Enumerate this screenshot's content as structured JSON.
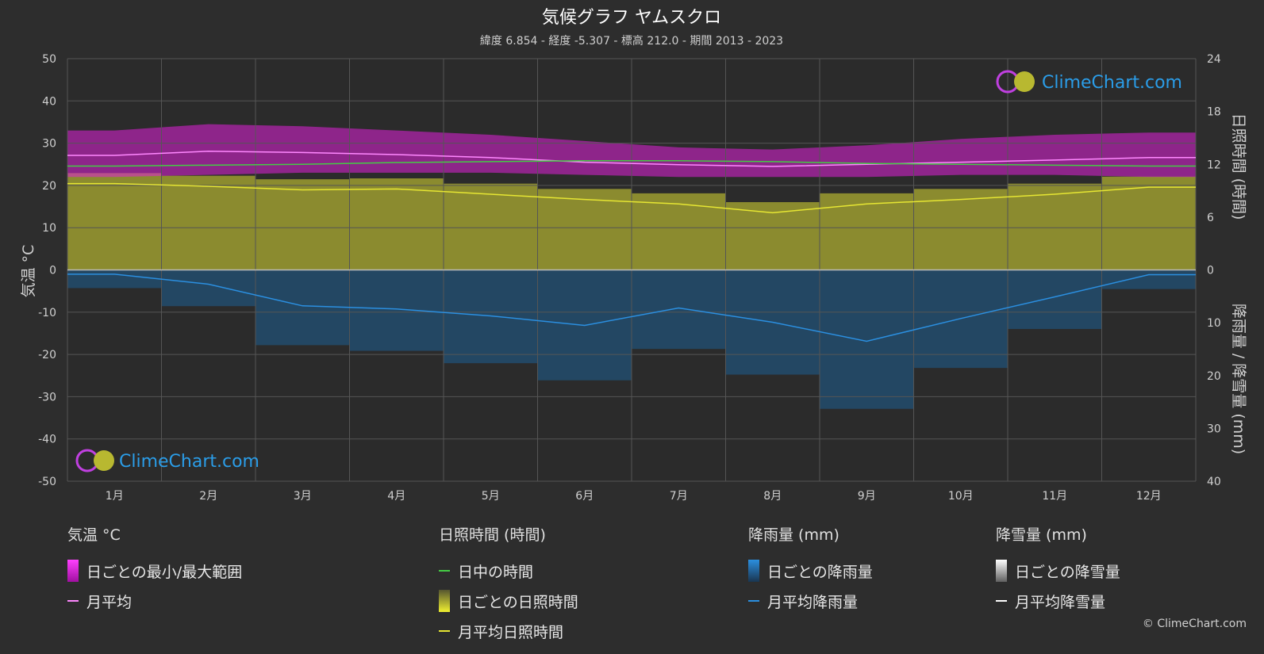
{
  "title": "気候グラフ ヤムスクロ",
  "subtitle": "緯度 6.854 - 経度 -5.307 - 標高 212.0 - 期間 2013 - 2023",
  "logo_text": "ClimeChart.com",
  "copyright": "© ClimeChart.com",
  "chart_data": {
    "type": "line",
    "months": [
      "1月",
      "2月",
      "3月",
      "4月",
      "5月",
      "6月",
      "7月",
      "8月",
      "9月",
      "10月",
      "11月",
      "12月"
    ],
    "axes": {
      "left": {
        "label": "気温 °C",
        "min": -50,
        "max": 50,
        "ticks": [
          50,
          40,
          30,
          20,
          10,
          0,
          -10,
          -20,
          -30,
          -40,
          -50
        ]
      },
      "right_top": {
        "label": "日照時間 (時間)",
        "min": 0,
        "max": 24,
        "ticks": [
          24,
          18,
          12,
          6,
          0
        ]
      },
      "right_bottom": {
        "label": "降雨量 / 降雪量 (mm)",
        "min": 0,
        "max": 40,
        "ticks": [
          0,
          10,
          20,
          30,
          40
        ]
      }
    },
    "series": [
      {
        "name": "月平均",
        "unit": "°C",
        "color": "#ff88ff",
        "values": [
          27.1,
          28.1,
          27.8,
          27.3,
          26.6,
          25.5,
          24.9,
          24.5,
          25.0,
          25.5,
          26.0,
          26.6
        ]
      },
      {
        "name": "日中の時間",
        "unit": "h",
        "color": "#44cc44",
        "values": [
          11.8,
          11.9,
          12.0,
          12.2,
          12.3,
          12.4,
          12.4,
          12.3,
          12.1,
          12.0,
          11.9,
          11.8
        ]
      },
      {
        "name": "月平均日照時間",
        "unit": "h",
        "color": "#e6e633",
        "values": [
          9.8,
          9.5,
          9.1,
          9.2,
          8.6,
          8.0,
          7.5,
          6.5,
          7.5,
          8.0,
          8.6,
          9.4
        ]
      },
      {
        "name": "月平均降雨量",
        "unit": "mm",
        "color": "#2b8fe0",
        "values": [
          0.8,
          2.7,
          6.8,
          7.4,
          8.7,
          10.5,
          7.2,
          9.9,
          13.5,
          9.2,
          5.1,
          0.9
        ]
      },
      {
        "name": "月平均降雪量",
        "unit": "mm",
        "color": "#ffffff",
        "values": [
          0,
          0,
          0,
          0,
          0,
          0,
          0,
          0,
          0,
          0,
          0,
          0
        ]
      }
    ],
    "ranges": {
      "daily_min_temp": [
        22.0,
        22.5,
        23.0,
        23.0,
        23.0,
        22.5,
        22.0,
        22.0,
        22.0,
        22.5,
        22.5,
        22.0
      ],
      "daily_max_temp": [
        33.0,
        34.5,
        34.0,
        33.0,
        32.0,
        30.5,
        29.0,
        28.5,
        29.5,
        31.0,
        32.0,
        32.5
      ]
    },
    "grid": true
  },
  "legend": {
    "temp": {
      "title": "気温 °C",
      "items": [
        "日ごとの最小/最大範囲",
        "月平均"
      ]
    },
    "sun": {
      "title": "日照時間 (時間)",
      "items": [
        "日中の時間",
        "日ごとの日照時間",
        "月平均日照時間"
      ]
    },
    "rain": {
      "title": "降雨量 (mm)",
      "items": [
        "日ごとの降雨量",
        "月平均降雨量"
      ]
    },
    "snow": {
      "title": "降雪量 (mm)",
      "items": [
        "日ごとの降雪量",
        "月平均降雪量"
      ]
    }
  },
  "colors": {
    "background": "#2d2d2d",
    "temp_range": "#e020d8",
    "sun_fill": "#9c9c30",
    "rain_fill": "#1d5e92",
    "grid": "#555555"
  }
}
